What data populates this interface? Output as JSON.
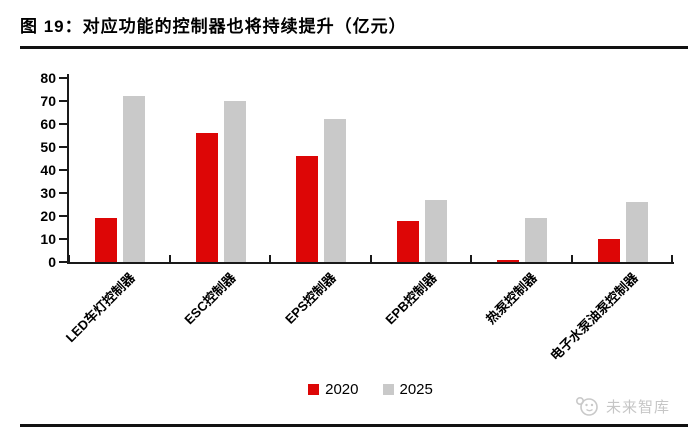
{
  "title": "图 19：对应功能的控制器也将持续提升（亿元）",
  "watermark": {
    "brand": "未来智库",
    "icon": "mascot-face-icon"
  },
  "chart_data": {
    "type": "bar",
    "title": "对应功能的控制器也将持续提升（亿元）",
    "figure_label": "图 19",
    "categories": [
      "LED车灯控制器",
      "ESC控制器",
      "EPS控制器",
      "EPB控制器",
      "热泵控制器",
      "电子水泵油泵控制器"
    ],
    "series": [
      {
        "name": "2020",
        "color": "#dd0606",
        "values": [
          19,
          56,
          46,
          18,
          1,
          10
        ]
      },
      {
        "name": "2025",
        "color": "#c9c9c9",
        "values": [
          72,
          70,
          62,
          27,
          19,
          26
        ]
      }
    ],
    "xlabel": "",
    "ylabel": "",
    "ylim": [
      0,
      80
    ],
    "ytick_step": 10,
    "grid": false,
    "legend_position": "bottom",
    "x_tick_label_rotation": 45
  }
}
